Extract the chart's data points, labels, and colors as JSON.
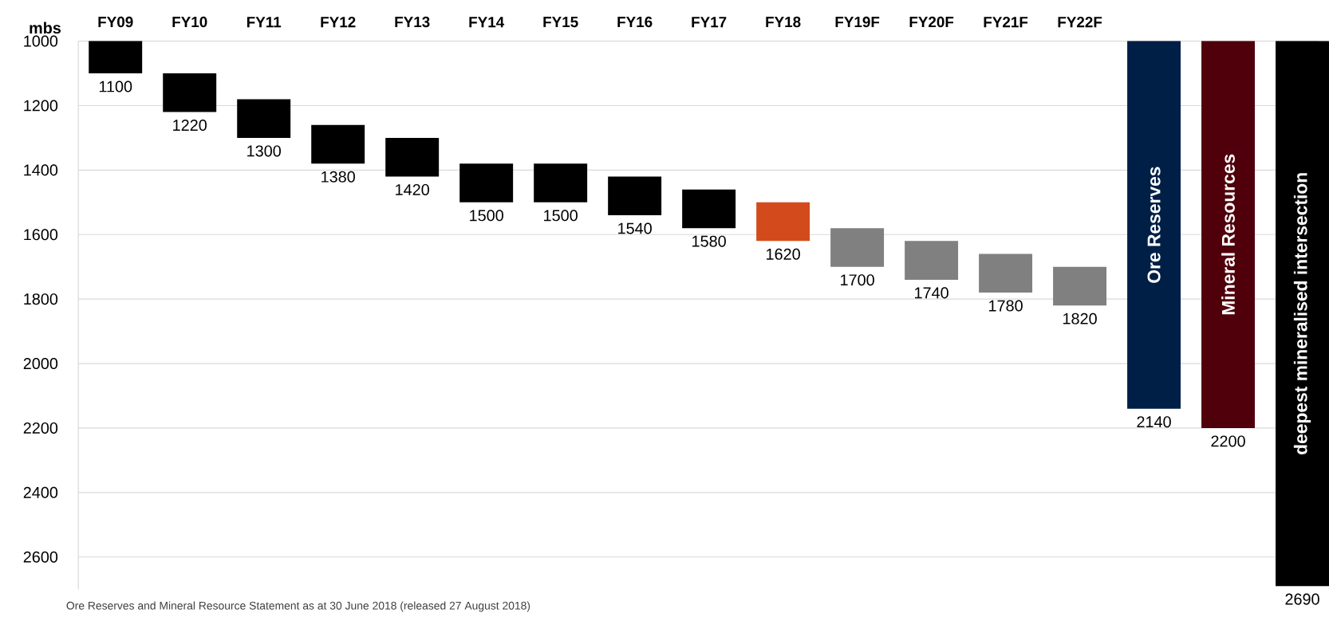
{
  "chart_data": {
    "type": "bar",
    "ylabel": "mbs",
    "categories": [
      "FY09",
      "FY10",
      "FY11",
      "FY12",
      "FY13",
      "FY14",
      "FY15",
      "FY16",
      "FY17",
      "FY18",
      "FY19F",
      "FY20F",
      "FY21F",
      "FY22F",
      "Ore Reserves",
      "Mineral Resources",
      "deepest mineralised intersection"
    ],
    "base": [
      1000,
      1100,
      1180,
      1260,
      1300,
      1380,
      1380,
      1420,
      1460,
      1500,
      1580,
      1620,
      1660,
      1700,
      1000,
      1000,
      1000
    ],
    "values": [
      100,
      120,
      120,
      120,
      120,
      120,
      120,
      120,
      120,
      120,
      120,
      120,
      120,
      120,
      1140,
      1200,
      1690
    ],
    "value_labels": [
      "1100",
      "1220",
      "1300",
      "1380",
      "1420",
      "1500",
      "1500",
      "1540",
      "1580",
      "1620",
      "1700",
      "1740",
      "1780",
      "1820",
      "2140",
      "2200",
      "2690"
    ],
    "colors": [
      "#000000",
      "#000000",
      "#000000",
      "#000000",
      "#000000",
      "#000000",
      "#000000",
      "#000000",
      "#000000",
      "#d34b1d",
      "#808080",
      "#808080",
      "#808080",
      "#808080",
      "#001f47",
      "#4f000b",
      "#000000"
    ],
    "ylim": [
      2700,
      1000
    ],
    "yticks": [
      1000,
      1200,
      1400,
      1600,
      1800,
      2000,
      2200,
      2400,
      2600
    ],
    "grid": "y",
    "annotations": [
      "Ore Reserves and Mineral Resource Statement as at 30 June 2018 (released 27 August 2018)"
    ]
  }
}
